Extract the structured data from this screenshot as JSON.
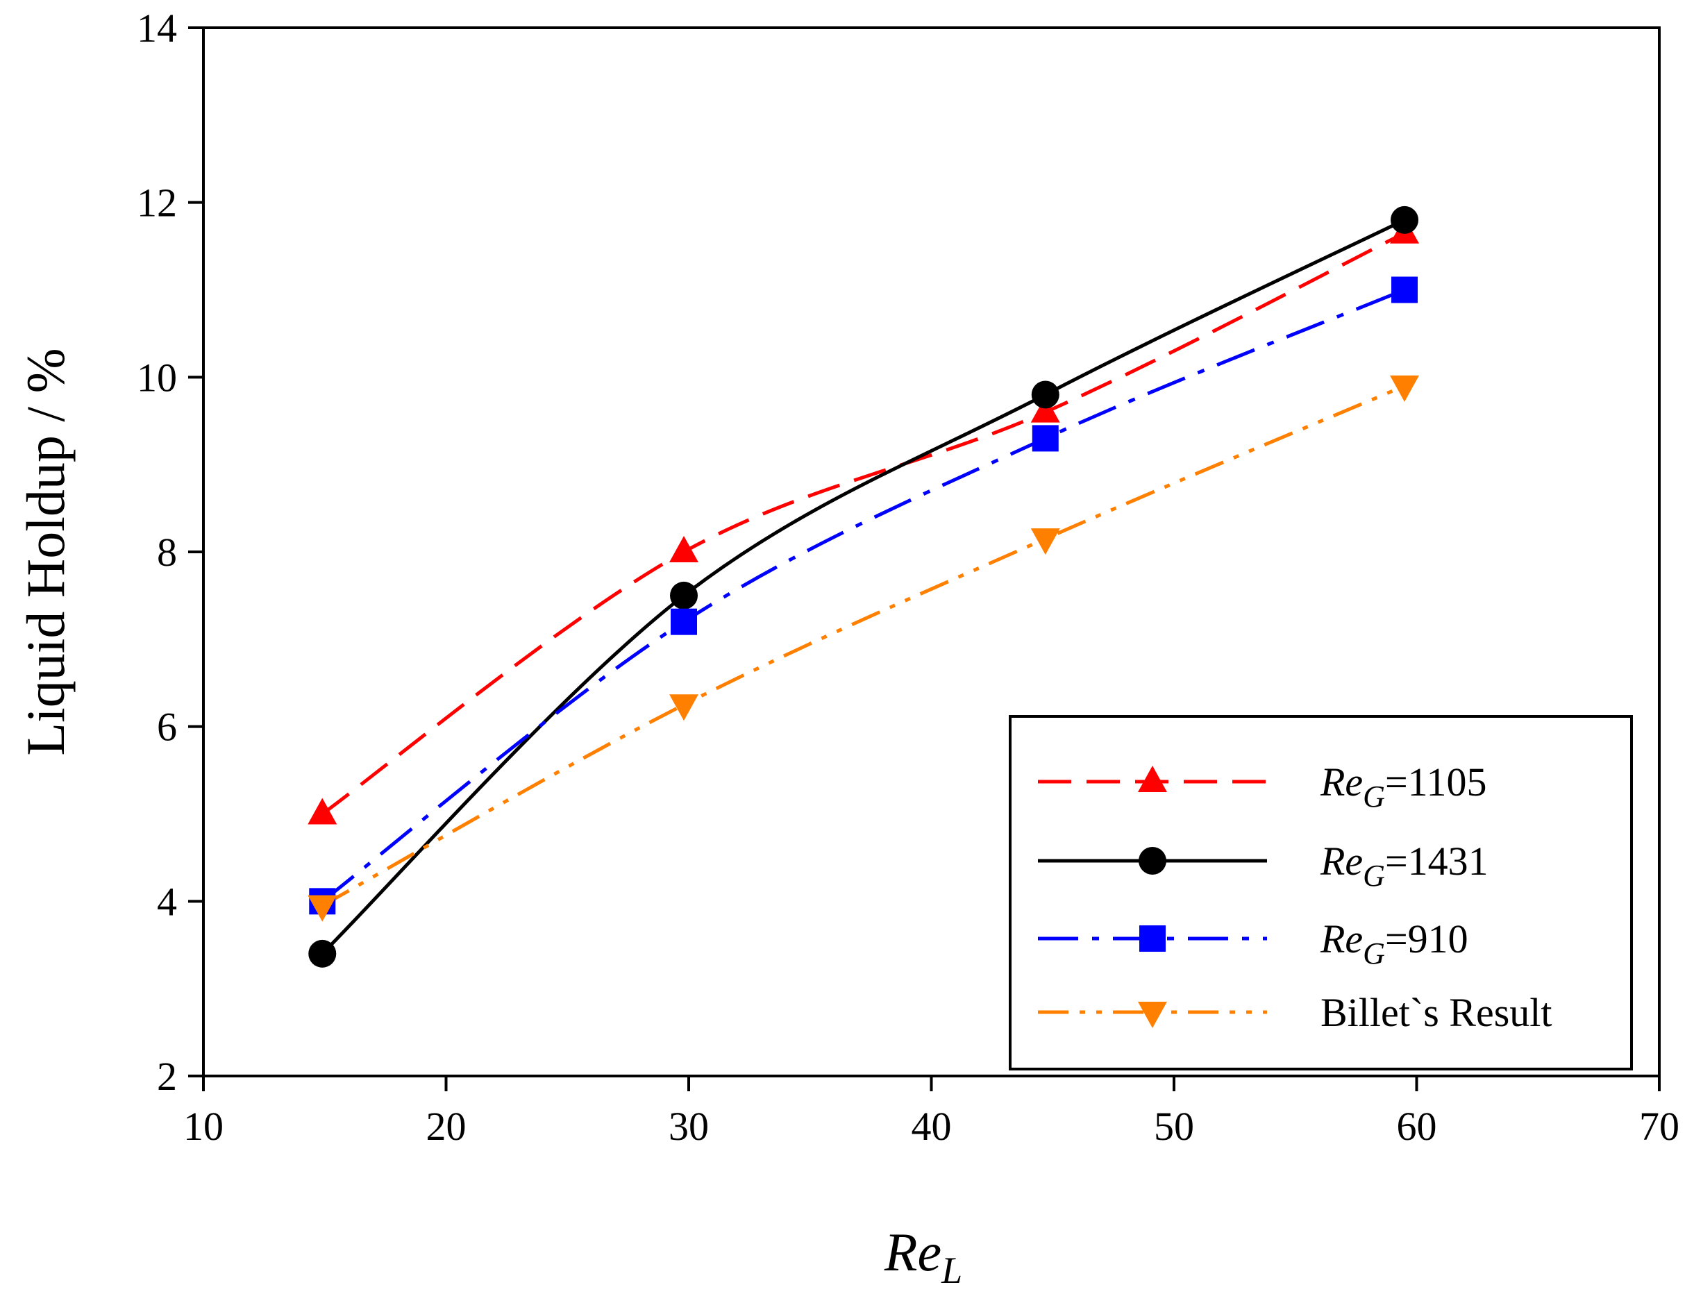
{
  "chart_data": {
    "type": "line",
    "title": "",
    "xlabel": {
      "main": "Re",
      "sub": "L"
    },
    "ylabel": "Liquid Holdup / %",
    "xlim": [
      10,
      70
    ],
    "ylim": [
      2,
      14
    ],
    "x_ticks": [
      "10",
      "20",
      "30",
      "40",
      "50",
      "60",
      "70"
    ],
    "y_ticks": [
      "2",
      "4",
      "6",
      "8",
      "10",
      "12",
      "14"
    ],
    "x": [
      14.9,
      29.8,
      44.7,
      59.5
    ],
    "legend_position": "bottom-right",
    "series": [
      {
        "id": "reg1105",
        "name_main": "Re",
        "name_sub": "G",
        "name_tail": "=1105",
        "values": [
          5.0,
          8.0,
          9.6,
          11.65
        ],
        "color": "#ff0000",
        "dash": "dashed",
        "marker": "triangle-up"
      },
      {
        "id": "reg1431",
        "name_main": "Re",
        "name_sub": "G",
        "name_tail": "=1431",
        "values": [
          3.4,
          7.5,
          9.8,
          11.8
        ],
        "color": "#000000",
        "dash": "solid",
        "marker": "circle"
      },
      {
        "id": "reg910",
        "name_main": "Re",
        "name_sub": "G",
        "name_tail": "=910",
        "values": [
          4.0,
          7.2,
          9.3,
          11.0
        ],
        "color": "#0000ff",
        "dash": "dash-dot",
        "marker": "square"
      },
      {
        "id": "billet",
        "name": "Billet`s Result",
        "values": [
          3.95,
          6.25,
          8.15,
          9.9
        ],
        "color": "#ff8000",
        "dash": "dash-dot-dot",
        "marker": "triangle-down"
      }
    ]
  }
}
